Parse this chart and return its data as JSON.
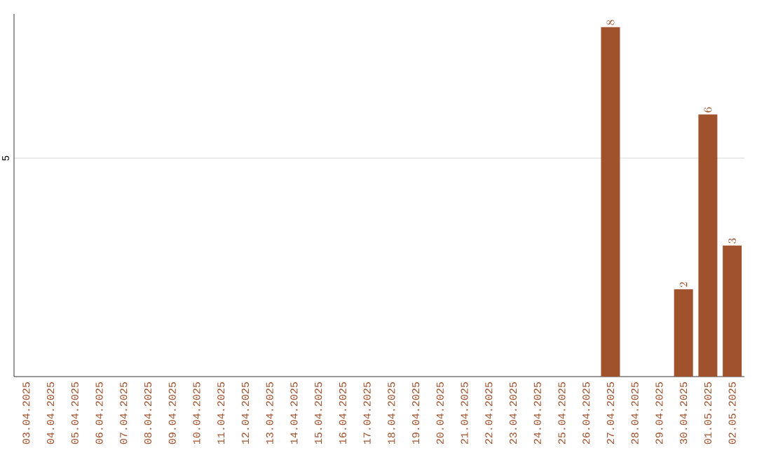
{
  "chart_data": {
    "type": "bar",
    "categories": [
      "03.04.2025",
      "04.04.2025",
      "05.04.2025",
      "06.04.2025",
      "07.04.2025",
      "08.04.2025",
      "09.04.2025",
      "10.04.2025",
      "11.04.2025",
      "12.04.2025",
      "13.04.2025",
      "14.04.2025",
      "15.04.2025",
      "16.04.2025",
      "17.04.2025",
      "18.04.2025",
      "19.04.2025",
      "20.04.2025",
      "21.04.2025",
      "22.04.2025",
      "23.04.2025",
      "24.04.2025",
      "25.04.2025",
      "26.04.2025",
      "27.04.2025",
      "28.04.2025",
      "29.04.2025",
      "30.04.2025",
      "01.05.2025",
      "02.05.2025"
    ],
    "values": [
      null,
      null,
      null,
      null,
      null,
      null,
      null,
      null,
      null,
      null,
      null,
      null,
      null,
      null,
      null,
      null,
      null,
      null,
      null,
      null,
      null,
      null,
      null,
      null,
      8,
      null,
      null,
      2,
      6,
      3
    ],
    "color": "#a0522d",
    "ylim": [
      0,
      8.3
    ],
    "yticks": [
      5
    ],
    "grid": "y",
    "data_labels": true
  }
}
